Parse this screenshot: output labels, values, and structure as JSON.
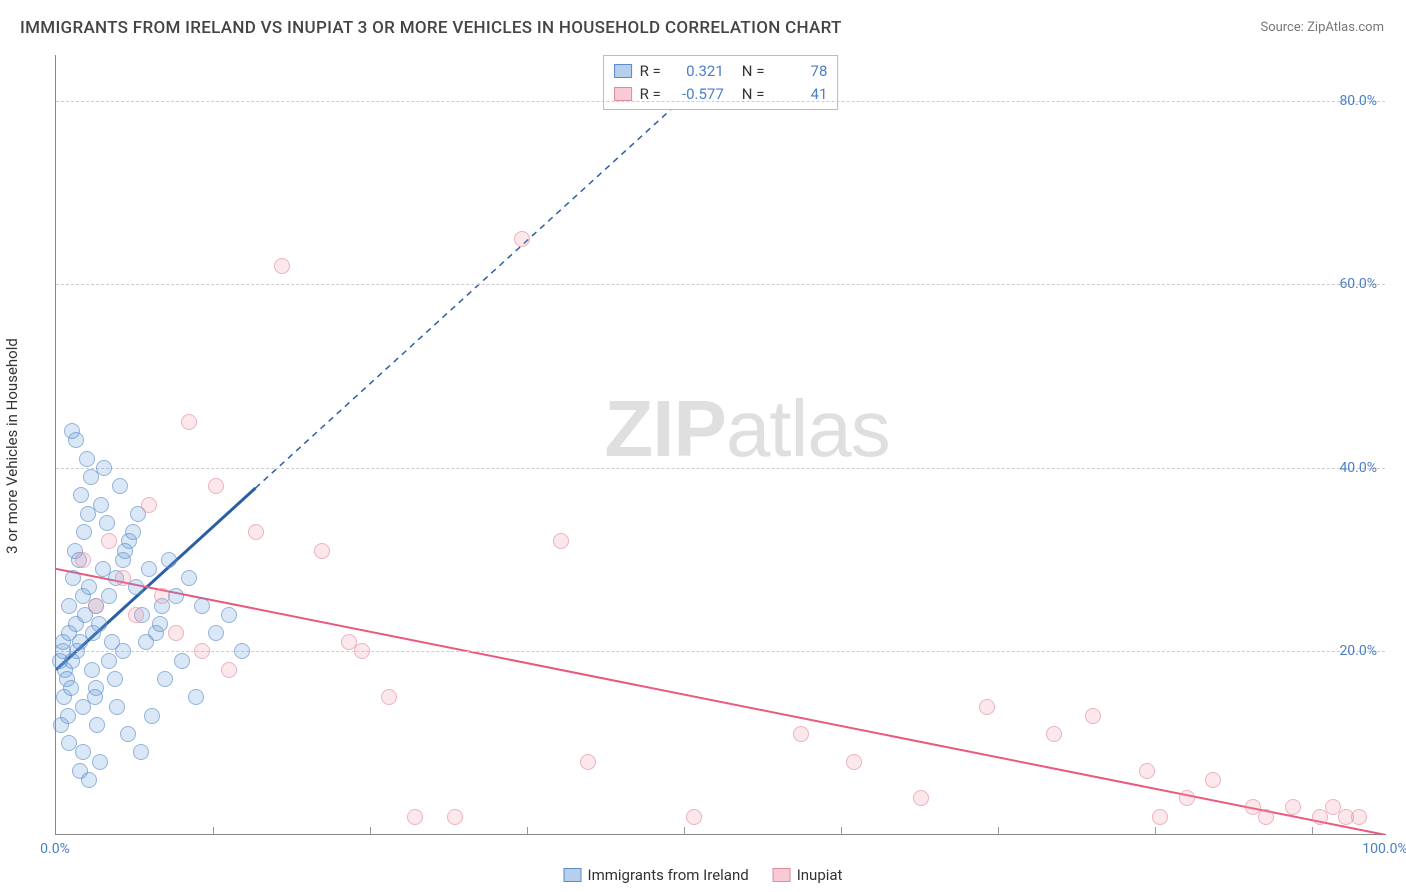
{
  "title": "IMMIGRANTS FROM IRELAND VS INUPIAT 3 OR MORE VEHICLES IN HOUSEHOLD CORRELATION CHART",
  "source": "Source: ZipAtlas.com",
  "watermark_a": "ZIP",
  "watermark_b": "atlas",
  "chart": {
    "type": "scatter",
    "ylabel": "3 or more Vehicles in Household",
    "xlim": [
      0,
      100
    ],
    "ylim": [
      0,
      85
    ],
    "xticks": [
      0,
      100
    ],
    "xtick_labels": [
      "0.0%",
      "100.0%"
    ],
    "xminor": [
      11.8,
      23.6,
      35.4,
      47.2,
      59.0,
      70.8,
      82.6,
      94.4
    ],
    "yticks": [
      20,
      40,
      60,
      80
    ],
    "ytick_labels": [
      "20.0%",
      "40.0%",
      "60.0%",
      "80.0%"
    ],
    "grid_color": "#cccccc",
    "axis_color": "#888888",
    "background_color": "#ffffff",
    "series": [
      {
        "name": "Immigrants from Ireland",
        "color_fill": "rgba(107,160,220,0.4)",
        "color_stroke": "#5a8cc5",
        "marker_size": 16,
        "R": "0.321",
        "N": "78",
        "trend": {
          "x0": 0,
          "y0": 18,
          "x1": 53,
          "y1": 88,
          "solid_until_x": 15,
          "color": "#2b5fa5",
          "width": 2
        },
        "points": [
          [
            0.3,
            19
          ],
          [
            0.5,
            20
          ],
          [
            0.7,
            18
          ],
          [
            0.5,
            21
          ],
          [
            1.0,
            22
          ],
          [
            1.2,
            19
          ],
          [
            0.8,
            17
          ],
          [
            1.5,
            23
          ],
          [
            1.0,
            25
          ],
          [
            1.8,
            21
          ],
          [
            2.0,
            26
          ],
          [
            0.6,
            15
          ],
          [
            1.3,
            28
          ],
          [
            2.2,
            24
          ],
          [
            1.7,
            30
          ],
          [
            2.5,
            27
          ],
          [
            0.9,
            13
          ],
          [
            1.1,
            16
          ],
          [
            2.8,
            22
          ],
          [
            3.0,
            25
          ],
          [
            1.4,
            31
          ],
          [
            3.5,
            29
          ],
          [
            2.1,
            33
          ],
          [
            4.0,
            26
          ],
          [
            1.6,
            20
          ],
          [
            2.4,
            35
          ],
          [
            3.2,
            23
          ],
          [
            4.5,
            28
          ],
          [
            1.9,
            37
          ],
          [
            5.0,
            30
          ],
          [
            2.6,
            39
          ],
          [
            0.4,
            12
          ],
          [
            1.0,
            10
          ],
          [
            2.0,
            14
          ],
          [
            3.0,
            16
          ],
          [
            4.0,
            19
          ],
          [
            2.3,
            41
          ],
          [
            5.5,
            32
          ],
          [
            3.8,
            34
          ],
          [
            6.0,
            27
          ],
          [
            2.7,
            18
          ],
          [
            4.2,
            21
          ],
          [
            1.5,
            43
          ],
          [
            6.5,
            24
          ],
          [
            3.4,
            36
          ],
          [
            7.0,
            29
          ],
          [
            2.9,
            15
          ],
          [
            5.2,
            31
          ],
          [
            4.8,
            38
          ],
          [
            8.0,
            25
          ],
          [
            3.6,
            40
          ],
          [
            1.2,
            44
          ],
          [
            7.5,
            22
          ],
          [
            5.8,
            33
          ],
          [
            2.0,
            9
          ],
          [
            4.4,
            17
          ],
          [
            9.0,
            26
          ],
          [
            6.2,
            35
          ],
          [
            3.1,
            12
          ],
          [
            8.5,
            30
          ],
          [
            1.8,
            7
          ],
          [
            5.0,
            20
          ],
          [
            10.0,
            28
          ],
          [
            7.8,
            23
          ],
          [
            4.6,
            14
          ],
          [
            11.0,
            25
          ],
          [
            6.8,
            21
          ],
          [
            3.3,
            8
          ],
          [
            12.0,
            22
          ],
          [
            9.5,
            19
          ],
          [
            5.4,
            11
          ],
          [
            13.0,
            24
          ],
          [
            8.2,
            17
          ],
          [
            2.5,
            6
          ],
          [
            14.0,
            20
          ],
          [
            10.5,
            15
          ],
          [
            6.4,
            9
          ],
          [
            7.2,
            13
          ]
        ]
      },
      {
        "name": "Inupiat",
        "color_fill": "rgba(240,150,170,0.35)",
        "color_stroke": "#e08aa0",
        "marker_size": 16,
        "R": "-0.577",
        "N": "41",
        "trend": {
          "x0": 0,
          "y0": 29,
          "x1": 100,
          "y1": 0,
          "color": "#e85a7a",
          "width": 2
        },
        "points": [
          [
            2,
            30
          ],
          [
            3,
            25
          ],
          [
            4,
            32
          ],
          [
            5,
            28
          ],
          [
            6,
            24
          ],
          [
            7,
            36
          ],
          [
            8,
            26
          ],
          [
            9,
            22
          ],
          [
            10,
            45
          ],
          [
            11,
            20
          ],
          [
            12,
            38
          ],
          [
            13,
            18
          ],
          [
            15,
            33
          ],
          [
            17,
            62
          ],
          [
            20,
            31
          ],
          [
            22,
            21
          ],
          [
            23,
            20
          ],
          [
            25,
            15
          ],
          [
            27,
            2
          ],
          [
            30,
            2
          ],
          [
            35,
            65
          ],
          [
            38,
            32
          ],
          [
            40,
            8
          ],
          [
            48,
            2
          ],
          [
            56,
            11
          ],
          [
            60,
            8
          ],
          [
            65,
            4
          ],
          [
            70,
            14
          ],
          [
            75,
            11
          ],
          [
            78,
            13
          ],
          [
            82,
            7
          ],
          [
            83,
            2
          ],
          [
            85,
            4
          ],
          [
            87,
            6
          ],
          [
            90,
            3
          ],
          [
            91,
            2
          ],
          [
            93,
            3
          ],
          [
            95,
            2
          ],
          [
            96,
            3
          ],
          [
            97,
            2
          ],
          [
            98,
            2
          ]
        ]
      }
    ],
    "legend": {
      "items": [
        "Immigrants from Ireland",
        "Inupiat"
      ]
    }
  }
}
